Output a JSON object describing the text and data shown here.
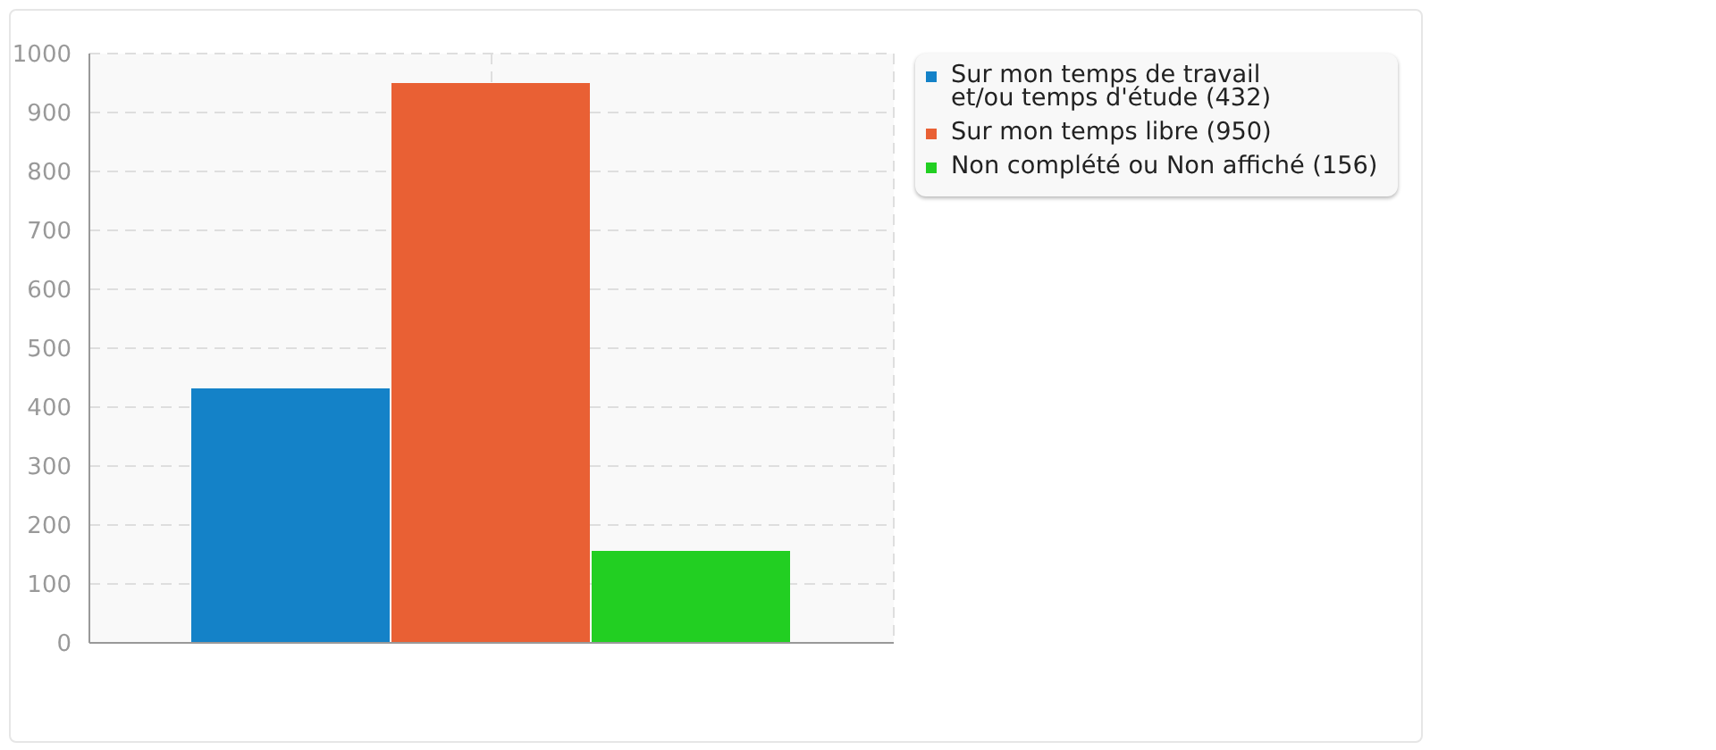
{
  "chart_data": {
    "type": "bar",
    "categories": [
      null
    ],
    "series": [
      {
        "name": "Sur mon temps de travail\net/ou temps d'étude (432)",
        "color": "#1482c8",
        "values": [
          432
        ]
      },
      {
        "name": "Sur mon temps libre (950)",
        "color": "#e96034",
        "values": [
          950
        ]
      },
      {
        "name": "Non complété ou Non affiché (156)",
        "color": "#22cf22",
        "values": [
          156
        ]
      }
    ],
    "ylim": [
      0,
      1000
    ],
    "yticks": [
      0,
      100,
      200,
      300,
      400,
      500,
      600,
      700,
      800,
      900,
      1000
    ],
    "grid": true,
    "legend": "top right"
  }
}
